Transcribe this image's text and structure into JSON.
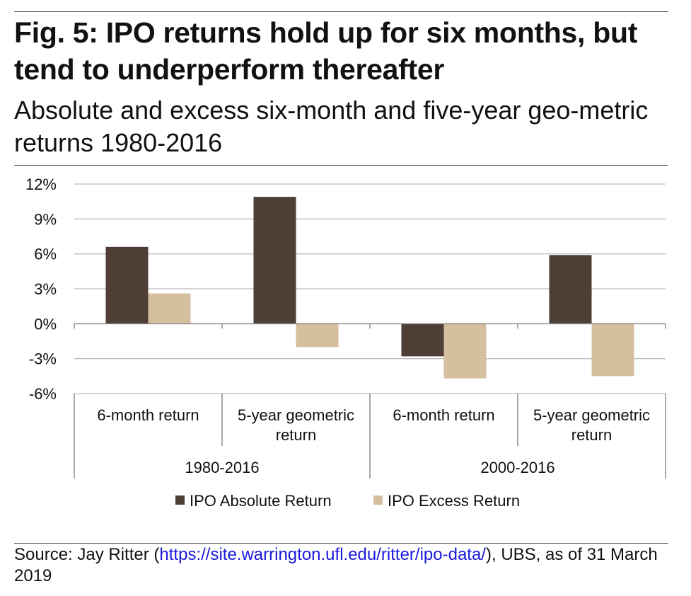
{
  "title": "Fig. 5: IPO returns hold up for six months, but tend to underperform thereafter",
  "subtitle": "Absolute and excess six-month and five-year geo-metric returns 1980-2016",
  "source": {
    "prefix": "Source: Jay Ritter (",
    "link": "https://site.warrington.ufl.edu/ritter/ipo-data/",
    "suffix": "), UBS, as of 31 March 2019"
  },
  "colors": {
    "absolute": "#4e3e35",
    "excess": "#d5bf9e",
    "grid": "#bdbdbd",
    "axis": "#8a8a8a"
  },
  "chart_data": {
    "type": "bar",
    "groups": [
      {
        "label": "1980-2016",
        "categories": [
          "6-month return",
          "5-year geometric return"
        ]
      },
      {
        "label": "2000-2016",
        "categories": [
          "6-month return",
          "5-year geometric return"
        ]
      }
    ],
    "series": [
      {
        "name": "IPO Absolute Return",
        "values": [
          6.6,
          10.9,
          -2.8,
          5.9
        ]
      },
      {
        "name": "IPO Excess Return",
        "values": [
          2.6,
          -2.0,
          -4.7,
          -4.5
        ]
      }
    ],
    "y_unit": "%",
    "ylim": [
      -6,
      12
    ],
    "yticks": [
      12,
      9,
      6,
      3,
      0,
      -3,
      -6
    ],
    "ytick_labels": [
      "12%",
      "9%",
      "6%",
      "3%",
      "0%",
      "-3%",
      "-6%"
    ],
    "grid": true,
    "legend_position": "bottom"
  }
}
